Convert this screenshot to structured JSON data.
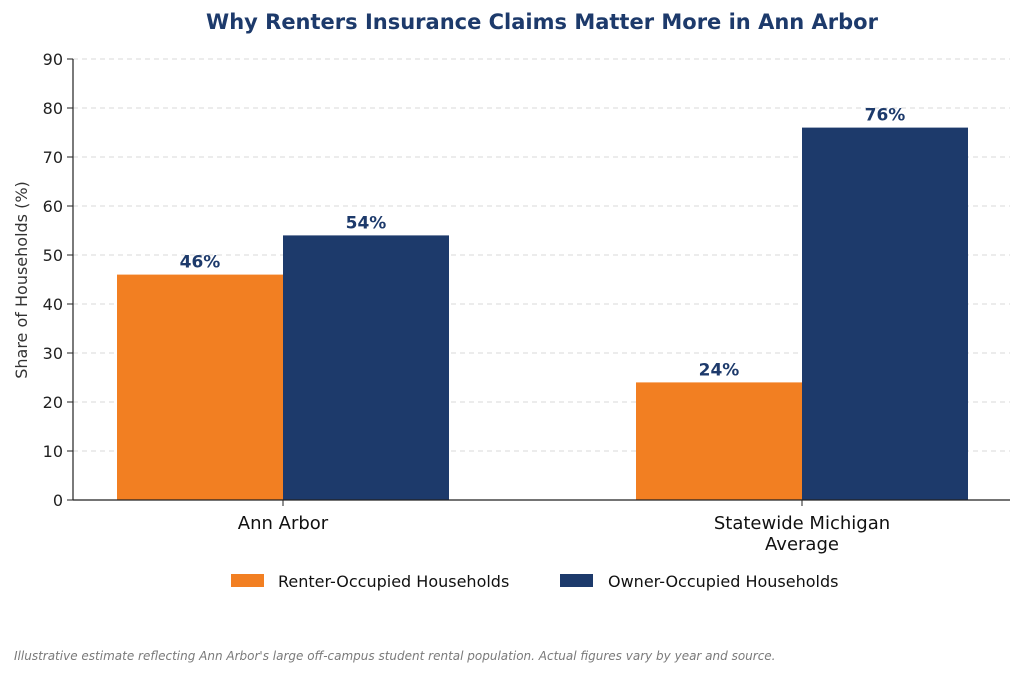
{
  "chart_data": {
    "type": "bar",
    "title": "Why Renters Insurance Claims Matter More in Ann Arbor",
    "xlabel": "",
    "ylabel": "Share of Households (%)",
    "ylim": [
      0,
      90
    ],
    "yticks": [
      0,
      10,
      20,
      30,
      40,
      50,
      60,
      70,
      80,
      90
    ],
    "categories": [
      [
        "Ann Arbor"
      ],
      [
        "Statewide Michigan",
        "Average"
      ]
    ],
    "series": [
      {
        "name": "Renter-Occupied Households",
        "values": [
          46,
          24
        ],
        "labels": [
          "46%",
          "24%"
        ],
        "color": "#F27F22"
      },
      {
        "name": "Owner-Occupied Households",
        "values": [
          54,
          76
        ],
        "labels": [
          "54%",
          "76%"
        ],
        "color": "#1D3A6B"
      }
    ],
    "grid": "horizontal dashed",
    "legend_position": "bottom-center",
    "title_color": "#1D3A6B",
    "label_color": "#1D3A6B"
  },
  "footnote": "Illustrative estimate reflecting Ann Arbor's large off-campus student rental population. Actual figures vary by year and source."
}
